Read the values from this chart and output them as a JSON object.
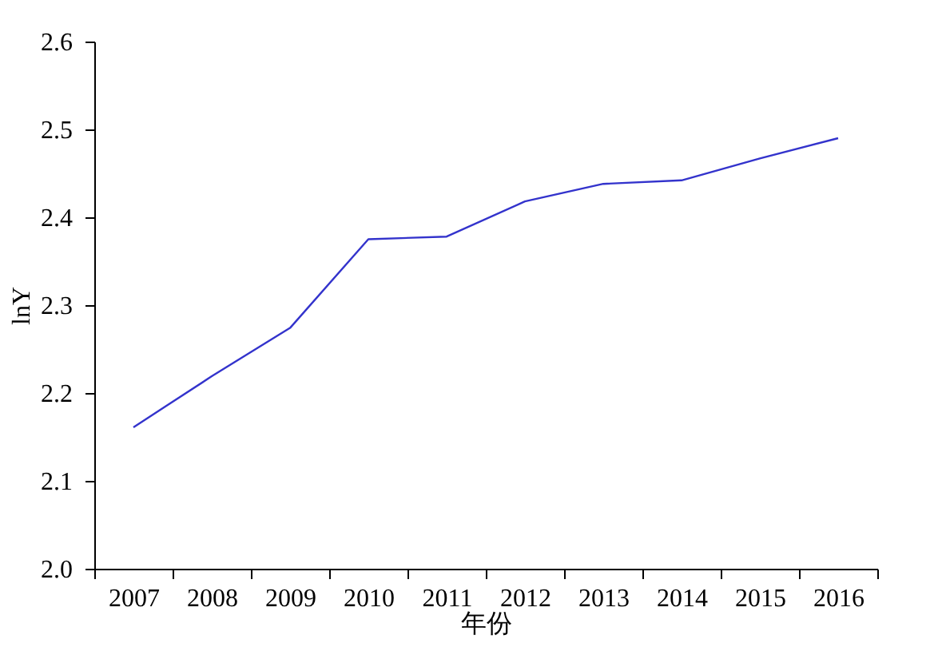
{
  "chart_data": {
    "type": "line",
    "xlabel": "年份",
    "ylabel": "lnY",
    "categories": [
      "2007",
      "2008",
      "2009",
      "2010",
      "2011",
      "2012",
      "2013",
      "2014",
      "2015",
      "2016"
    ],
    "series": [
      {
        "color": "#3333cc",
        "values": [
          2.161,
          2.219,
          2.274,
          2.375,
          2.378,
          2.418,
          2.438,
          2.442,
          2.467,
          2.49
        ]
      }
    ],
    "ylim": [
      2.0,
      2.6
    ],
    "yticks": [
      {
        "value": 2.0,
        "label": "2.0"
      },
      2.1,
      2.2,
      2.3,
      2.4,
      2.5,
      2.6
    ],
    "grid": false,
    "marker": "none",
    "line_style": "solid"
  }
}
